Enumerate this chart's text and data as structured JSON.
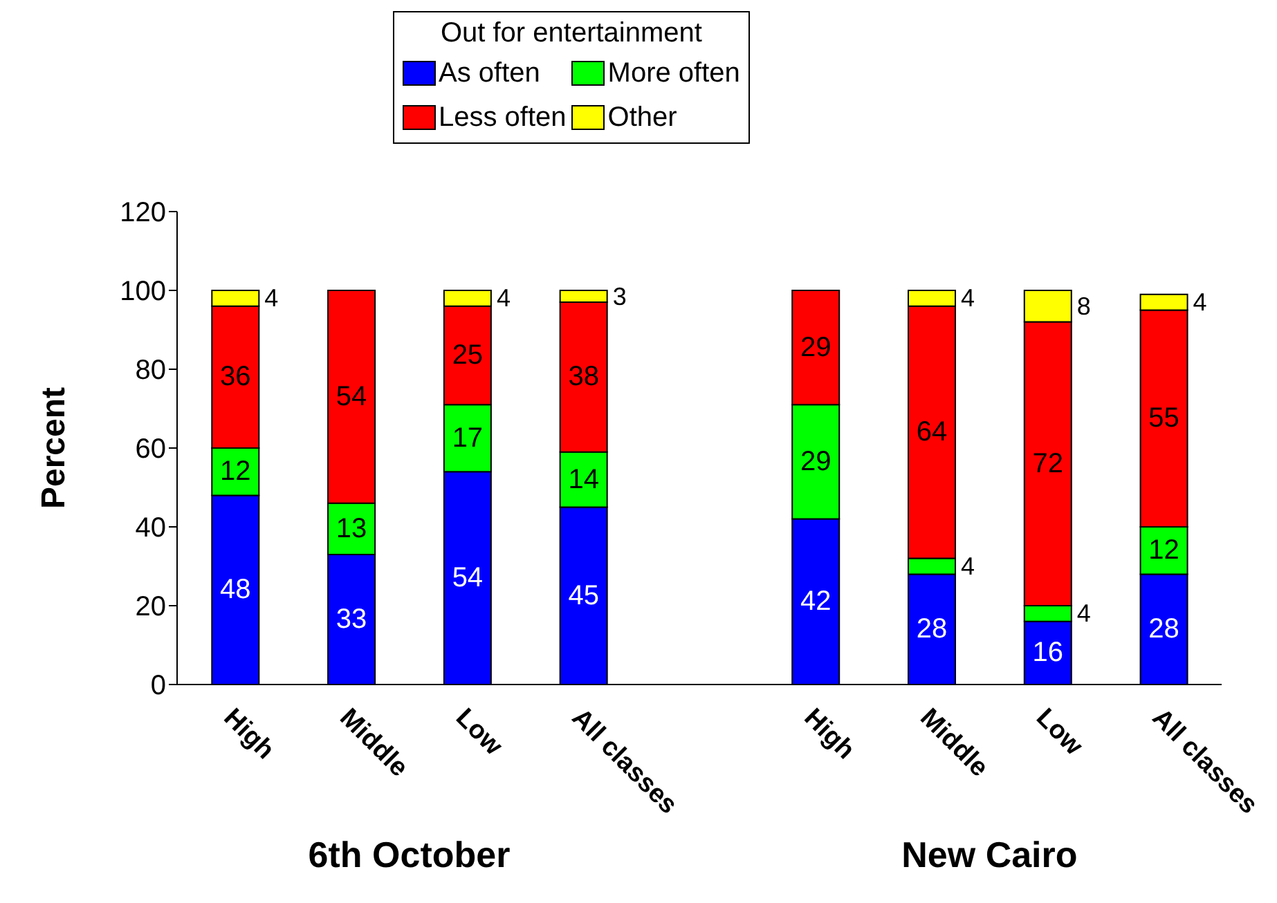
{
  "chart_data": {
    "type": "bar",
    "stacked": true,
    "ylabel": "Percent",
    "legend_title": "Out for entertainment",
    "legend": "top",
    "categories": [
      "High",
      "Middle",
      "Low",
      "All classes",
      null,
      "High",
      "Middle",
      "Low",
      "All classes"
    ],
    "series": [
      {
        "name": "As often",
        "color": "#0000ff",
        "values": [
          48,
          33,
          54,
          45,
          null,
          42,
          28,
          16,
          28
        ]
      },
      {
        "name": "More often",
        "color": "#00ff00",
        "values": [
          12,
          13,
          17,
          14,
          null,
          29,
          4,
          4,
          12
        ]
      },
      {
        "name": "Less often",
        "color": "#ff0000",
        "values": [
          36,
          54,
          25,
          38,
          null,
          29,
          64,
          72,
          55
        ]
      },
      {
        "name": "Other",
        "color": "#ffff00",
        "values": [
          4,
          null,
          4,
          3,
          null,
          null,
          4,
          8,
          4
        ]
      }
    ],
    "ylim": [
      0,
      120
    ],
    "yticks": [
      0,
      20,
      40,
      60,
      80,
      100,
      120
    ],
    "data_labels": true,
    "annotations": [
      "6th October",
      "New Cairo"
    ]
  }
}
